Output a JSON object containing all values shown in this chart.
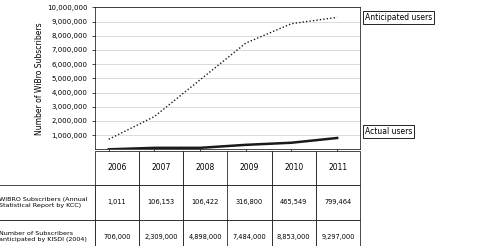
{
  "years": [
    2006,
    2007,
    2008,
    2009,
    2010,
    2011
  ],
  "actual": [
    1011,
    106153,
    106422,
    316800,
    465549,
    799464
  ],
  "anticipated": [
    706000,
    2309000,
    4898000,
    7484000,
    8853000,
    9297000
  ],
  "ylim": [
    0,
    10000000
  ],
  "yticks": [
    1000000,
    2000000,
    3000000,
    4000000,
    5000000,
    6000000,
    7000000,
    8000000,
    9000000,
    10000000
  ],
  "ytick_labels": [
    "1,000,000",
    "2,000,000",
    "3,000,000",
    "4,000,000",
    "5,000,000",
    "6,000,000",
    "7,000,000",
    "8,000,000",
    "9,000,000",
    "10,000,000"
  ],
  "ylabel": "Number of WiBro Subscribers",
  "legend_entries": [
    "— WIBRO Subscribers (Annual\n   Statistical Report by KCC)",
    "...... Number of Subscribers\n   anticipated by KISDI (2004)"
  ],
  "table_rows": [
    [
      "1,011",
      "106,153",
      "106,422",
      "316,800",
      "465,549",
      "799,464"
    ],
    [
      "706,000",
      "2,309,000",
      "4,898,000",
      "7,484,000",
      "8,853,000",
      "9,297,000"
    ]
  ],
  "annotation_anticipated": "Anticipated users",
  "annotation_actual": "Actual users",
  "bg_color": "#ffffff",
  "line_color_actual": "#1a1a1a",
  "line_color_anticipated": "#1a1a1a",
  "grid_color": "#cccccc",
  "table_row_labels": [
    "WIBRO Subscribers (Annual\nStatistical Report by KCC)",
    "Number of Subscribers\nanticipated by KISDI (2004)"
  ]
}
